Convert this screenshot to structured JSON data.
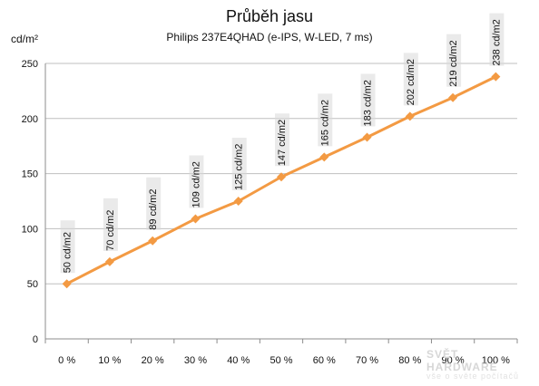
{
  "chart_data": {
    "type": "line",
    "title": "Průběh jasu",
    "subtitle": "Philips 237E4QHAD  (e-IPS, W-LED, 7 ms)",
    "ylabel": "cd/m²",
    "xlabel": "",
    "categories": [
      "0 %",
      "10 %",
      "20 %",
      "30 %",
      "40 %",
      "50 %",
      "60 %",
      "70 %",
      "80 %",
      "90 %",
      "100 %"
    ],
    "series": [
      {
        "values": [
          50,
          70,
          89,
          109,
          125,
          147,
          165,
          183,
          202,
          219,
          238
        ],
        "data_labels": [
          "50 cd/m2",
          "70 cd/m2",
          "89 cd/m2",
          "109 cd/m2",
          "125 cd/m2",
          "147 cd/m2",
          "165 cd/m2",
          "183 cd/m2",
          "202 cd/m2",
          "219 cd/m2",
          "238 cd/m2"
        ]
      }
    ],
    "ylim": [
      0,
      250
    ],
    "yticks": [
      0,
      50,
      100,
      150,
      200,
      250
    ],
    "grid": true,
    "legend": "none",
    "colors": {
      "line": "#f39a43",
      "marker": "#f39a43",
      "grid": "#bfbfbf",
      "axis": "#8c8c8c",
      "label_shadow": "#d9d9d9"
    }
  },
  "watermark": {
    "text": "SVĚT HARDWARE",
    "small_text": "vše o světe počítačů"
  }
}
